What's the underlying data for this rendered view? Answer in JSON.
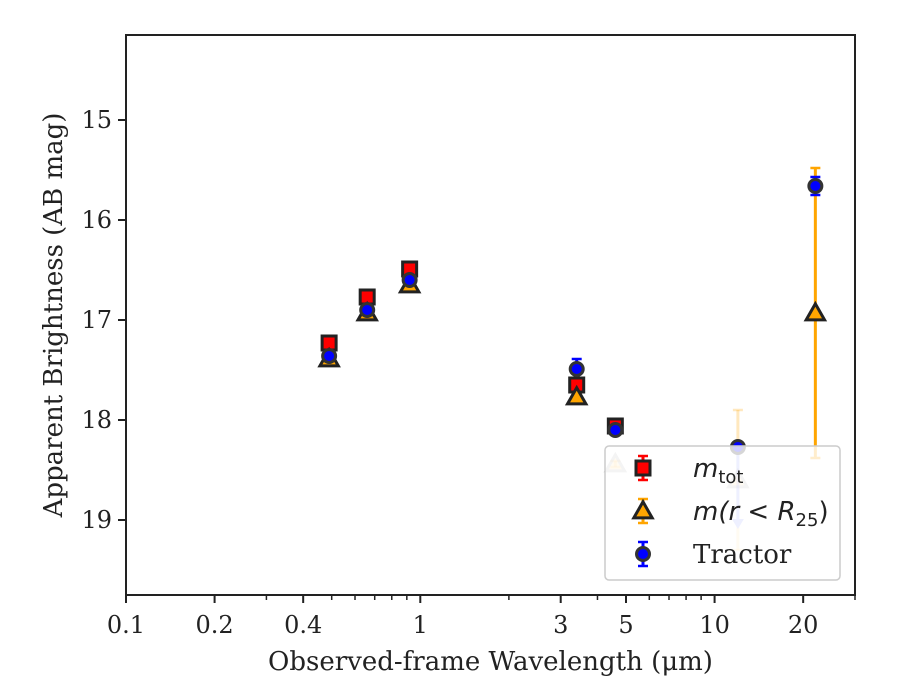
{
  "chart_data": {
    "type": "scatter",
    "xlabel": "Observed-frame Wavelength (μm)",
    "ylabel": "Apparent Brightness (AB mag)",
    "xscale": "log",
    "xlim": [
      0.1,
      30
    ],
    "ylim": [
      19.75,
      14.15
    ],
    "yinverted": true,
    "xticks": [
      {
        "value": 0.1,
        "label": "0.1"
      },
      {
        "value": 0.2,
        "label": "0.2"
      },
      {
        "value": 0.4,
        "label": "0.4"
      },
      {
        "value": 1,
        "label": "1"
      },
      {
        "value": 3,
        "label": "3"
      },
      {
        "value": 5,
        "label": "5"
      },
      {
        "value": 10,
        "label": "10"
      },
      {
        "value": 20,
        "label": "20"
      }
    ],
    "yticks": [
      {
        "value": 15,
        "label": "15"
      },
      {
        "value": 16,
        "label": "16"
      },
      {
        "value": 17,
        "label": "17"
      },
      {
        "value": 18,
        "label": "18"
      },
      {
        "value": 19,
        "label": "19"
      }
    ],
    "grid": false,
    "legend_position": "lower-right",
    "series": [
      {
        "name": "m_tot",
        "marker": "square",
        "color": "#ff0000",
        "edgecolor": "#222222",
        "points": [
          {
            "x": 0.49,
            "y": 17.23,
            "err": 0.04
          },
          {
            "x": 0.66,
            "y": 16.77,
            "err": 0.03
          },
          {
            "x": 0.92,
            "y": 16.49,
            "err": 0.03
          },
          {
            "x": 3.4,
            "y": 17.65,
            "err": 0.04
          },
          {
            "x": 4.6,
            "y": 18.06,
            "err": 0.05
          }
        ]
      },
      {
        "name": "m(r < R_25)",
        "marker": "triangle",
        "color": "#ffa500",
        "edgecolor": "#222222",
        "points": [
          {
            "x": 0.49,
            "y": 17.39,
            "err": 0.03,
            "alpha": 1
          },
          {
            "x": 0.66,
            "y": 16.93,
            "err": 0.03,
            "alpha": 1
          },
          {
            "x": 0.92,
            "y": 16.65,
            "err": 0.03,
            "alpha": 1
          },
          {
            "x": 3.4,
            "y": 17.77,
            "err": 0.03,
            "alpha": 1
          },
          {
            "x": 4.6,
            "y": 18.44,
            "err": 0.03,
            "alpha": 0.25
          },
          {
            "x": 12.0,
            "y": 18.6,
            "err": 0.7,
            "alpha": 0.25
          },
          {
            "x": 22.0,
            "y": 16.93,
            "err": 1.45,
            "alpha": 1
          }
        ]
      },
      {
        "name": "Tractor",
        "marker": "circle",
        "color": "#0000ff",
        "edgecolor": "#333333",
        "points": [
          {
            "x": 0.49,
            "y": 17.36,
            "err": 0.03,
            "alpha": 1
          },
          {
            "x": 0.66,
            "y": 16.9,
            "err": 0.03,
            "alpha": 1
          },
          {
            "x": 0.92,
            "y": 16.6,
            "err": 0.03,
            "alpha": 1
          },
          {
            "x": 3.4,
            "y": 17.49,
            "err": 0.1,
            "alpha": 1
          },
          {
            "x": 4.6,
            "y": 18.1,
            "err": 0.04,
            "alpha": 1
          },
          {
            "x": 12.0,
            "y": 18.27,
            "err": 0.0,
            "alpha": 1,
            "upper_limit_arrow_to": 19.05
          },
          {
            "x": 22.0,
            "y": 15.66,
            "err": 0.09,
            "alpha": 1
          }
        ]
      }
    ],
    "legend": [
      {
        "marker": "square",
        "label_main": "m",
        "label_sub": "tot",
        "series": 0
      },
      {
        "marker": "triangle",
        "label_main": "m(r < R",
        "label_sub": "25",
        "label_tail": ")",
        "series": 1
      },
      {
        "marker": "circle",
        "label_main": "Tractor",
        "series": 2
      }
    ]
  }
}
